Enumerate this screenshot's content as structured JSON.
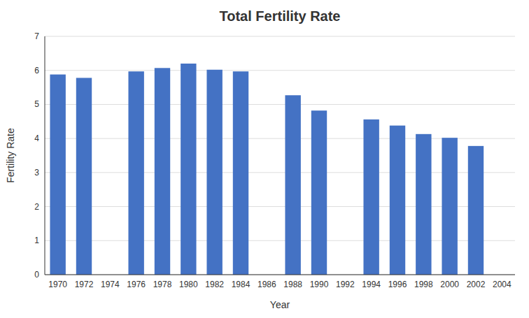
{
  "chart_data": {
    "type": "bar",
    "title": "Total Fertility Rate",
    "x_label": "Year",
    "y_label": "Fertility Rate",
    "categories": [
      "1970",
      "1972",
      "1974",
      "1976",
      "1978",
      "1980",
      "1982",
      "1984",
      "1986",
      "1988",
      "1990",
      "1992",
      "1994",
      "1996",
      "1998",
      "2000",
      "2002",
      "2004"
    ],
    "values": [
      5.88,
      5.78,
      null,
      5.97,
      6.07,
      6.2,
      6.02,
      5.97,
      null,
      5.27,
      4.82,
      null,
      4.56,
      4.38,
      4.13,
      4.02,
      3.78,
      null
    ],
    "color": "#4472C4",
    "ylim": [
      0,
      7
    ],
    "yticks": [
      0,
      1,
      2,
      3,
      4,
      5,
      6,
      7
    ],
    "grid": true
  }
}
